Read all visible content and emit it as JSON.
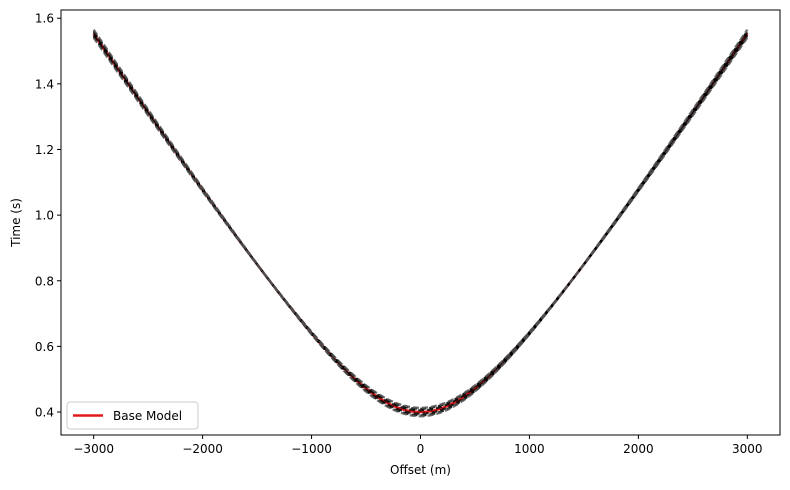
{
  "chart_data": {
    "type": "line",
    "title": "",
    "xlabel": "Offset (m)",
    "ylabel": "Time (s)",
    "xlim": [
      -3300,
      3300
    ],
    "ylim": [
      0.33,
      1.625
    ],
    "xticks": [
      -3000,
      -2000,
      -1000,
      0,
      1000,
      2000,
      3000
    ],
    "xtick_labels": [
      "−3000",
      "−2000",
      "−1000",
      "0",
      "1000",
      "2000",
      "3000"
    ],
    "yticks": [
      0.4,
      0.6,
      0.8,
      1.0,
      1.2,
      1.4,
      1.6
    ],
    "ytick_labels": [
      "0.4",
      "0.6",
      "0.8",
      "1.0",
      "1.2",
      "1.4",
      "1.6"
    ],
    "grid": false,
    "legend": {
      "placement": "lower-left",
      "entries": [
        "Base Model"
      ]
    },
    "series": [
      {
        "name": "Base Model",
        "color": "#e41a1c",
        "style": "solid",
        "t0": 0.4,
        "velocity": 2000,
        "x": [
          -3000,
          -2500,
          -2000,
          -1500,
          -1000,
          -500,
          0,
          500,
          1000,
          1500,
          2000,
          2500,
          3000
        ],
        "y": [
          1.552,
          1.302,
          1.077,
          0.854,
          0.64,
          0.447,
          0.4,
          0.447,
          0.64,
          0.854,
          1.077,
          1.302,
          1.552
        ]
      },
      {
        "color": "#000000",
        "style": "dashed",
        "t0": 0.39,
        "velocity": 1985
      },
      {
        "color": "#000000",
        "style": "dashed",
        "t0": 0.395,
        "velocity": 1992
      },
      {
        "color": "#000000",
        "style": "dashed",
        "t0": 0.405,
        "velocity": 2008
      },
      {
        "color": "#000000",
        "style": "dashed",
        "t0": 0.41,
        "velocity": 2015
      },
      {
        "color": "#555555",
        "style": "dashed",
        "t0": 0.387,
        "velocity": 1978
      },
      {
        "color": "#555555",
        "style": "dashed",
        "t0": 0.413,
        "velocity": 2022
      }
    ]
  }
}
